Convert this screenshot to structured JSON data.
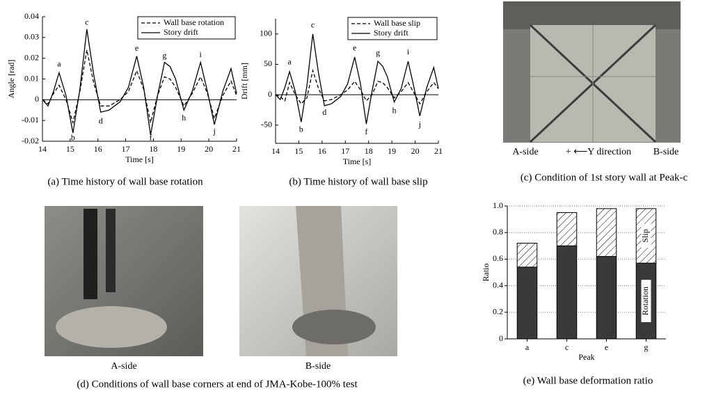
{
  "chart_data": [
    {
      "type": "line",
      "caption": "(a) Time history of wall base rotation",
      "xlabel": "Time [s]",
      "ylabel": "Angle [rad]",
      "x": [
        14,
        14.2,
        14.4,
        14.6,
        14.85,
        15.1,
        15.35,
        15.6,
        15.85,
        16.1,
        16.4,
        16.8,
        17.1,
        17.4,
        17.65,
        17.9,
        18.15,
        18.4,
        18.6,
        18.8,
        19.1,
        19.4,
        19.7,
        19.95,
        20.2,
        20.5,
        20.8,
        21
      ],
      "series": [
        {
          "name": "Wall base rotation",
          "color": "#000000",
          "style": "dashed",
          "values": [
            0,
            -0.002,
            0.003,
            0.007,
            0,
            -0.011,
            0.004,
            0.024,
            0.008,
            -0.003,
            -0.003,
            0,
            0.004,
            0.014,
            0.005,
            -0.011,
            0.002,
            0.011,
            0.01,
            0.006,
            -0.003,
            0.003,
            0.011,
            0.003,
            -0.009,
            0.002,
            0.009,
            0.002
          ]
        },
        {
          "name": "Story drift",
          "color": "#000000",
          "style": "solid",
          "values": [
            0,
            -0.003,
            0.004,
            0.013,
            0.002,
            -0.016,
            0.005,
            0.034,
            0.012,
            -0.006,
            -0.005,
            -0.001,
            0.006,
            0.021,
            0.006,
            -0.017,
            0.002,
            0.018,
            0.016,
            0.01,
            -0.005,
            0.004,
            0.018,
            0.004,
            -0.012,
            0.004,
            0.015,
            0.003
          ]
        }
      ],
      "annotations": [
        {
          "text": "a",
          "x": 14.6,
          "y": 0.017
        },
        {
          "text": "b",
          "x": 15.1,
          "y": -0.0185
        },
        {
          "text": "c",
          "x": 15.6,
          "y": 0.037
        },
        {
          "text": "d",
          "x": 16.1,
          "y": -0.0105
        },
        {
          "text": "e",
          "x": 17.4,
          "y": 0.0245
        },
        {
          "text": "f",
          "x": 17.9,
          "y": -0.0185
        },
        {
          "text": "g",
          "x": 18.4,
          "y": 0.021
        },
        {
          "text": "h",
          "x": 19.1,
          "y": -0.009
        },
        {
          "text": "i",
          "x": 19.7,
          "y": 0.0215
        },
        {
          "text": "j",
          "x": 20.2,
          "y": -0.0155
        }
      ],
      "xlim": [
        14,
        21
      ],
      "xticks": [
        14,
        15,
        16,
        17,
        18,
        19,
        20,
        21
      ],
      "ylim": [
        -0.02,
        0.04
      ],
      "yticks": [
        -0.02,
        -0.01,
        0,
        0.01,
        0.02,
        0.03,
        0.04
      ],
      "legend": "upper right",
      "grid": false
    },
    {
      "type": "line",
      "caption": "(b) Time history of wall base slip",
      "xlabel": "Time [s]",
      "ylabel": "Drift [mm]",
      "x": [
        14,
        14.2,
        14.4,
        14.6,
        14.85,
        15.1,
        15.35,
        15.6,
        15.85,
        16.1,
        16.4,
        16.8,
        17.1,
        17.4,
        17.65,
        17.9,
        18.15,
        18.4,
        18.6,
        18.8,
        19.1,
        19.4,
        19.7,
        19.95,
        20.2,
        20.5,
        20.8,
        21
      ],
      "series": [
        {
          "name": "Wall base slip",
          "color": "#000000",
          "style": "dashed",
          "values": [
            0,
            -3,
            -10,
            20,
            0,
            -15,
            -5,
            40,
            10,
            -10,
            -8,
            0,
            8,
            22,
            8,
            -10,
            0,
            22,
            20,
            12,
            -5,
            5,
            20,
            3,
            -15,
            5,
            20,
            10
          ]
        },
        {
          "name": "Story drift",
          "color": "#000000",
          "style": "solid",
          "values": [
            0,
            -8,
            12,
            38,
            5,
            -45,
            15,
            100,
            35,
            -18,
            -15,
            -3,
            18,
            62,
            18,
            -48,
            6,
            55,
            47,
            30,
            -12,
            10,
            55,
            12,
            -35,
            12,
            45,
            10
          ]
        }
      ],
      "annotations": [
        {
          "text": "a",
          "x": 14.6,
          "y": 53
        },
        {
          "text": "b",
          "x": 15.1,
          "y": -58
        },
        {
          "text": "c",
          "x": 15.6,
          "y": 114
        },
        {
          "text": "d",
          "x": 16.1,
          "y": -30
        },
        {
          "text": "e",
          "x": 17.4,
          "y": 76
        },
        {
          "text": "f",
          "x": 17.9,
          "y": -62
        },
        {
          "text": "g",
          "x": 18.4,
          "y": 68
        },
        {
          "text": "h",
          "x": 19.1,
          "y": -27
        },
        {
          "text": "i",
          "x": 19.7,
          "y": 70
        },
        {
          "text": "j",
          "x": 20.2,
          "y": -50
        }
      ],
      "xlim": [
        14,
        21
      ],
      "xticks": [
        14,
        15,
        16,
        17,
        18,
        19,
        20,
        21
      ],
      "ylim": [
        -80,
        125
      ],
      "yticks": [
        -50,
        0,
        50,
        100
      ],
      "legend": "upper right",
      "grid": false
    },
    {
      "type": "stacked-bar",
      "caption": "(e)    Wall base deformation ratio",
      "xlabel": "Peak",
      "ylabel": "Ratio",
      "categories": [
        "a",
        "c",
        "e",
        "g"
      ],
      "series": [
        {
          "name": "Rotation",
          "color": "#3a3a3a",
          "values": [
            0.54,
            0.7,
            0.62,
            0.57
          ]
        },
        {
          "name": "Slip",
          "color": "#ffffff",
          "hatch": "//",
          "values": [
            0.18,
            0.25,
            0.36,
            0.41
          ]
        }
      ],
      "ylim": [
        0,
        1
      ],
      "yticks": [
        0,
        0.2,
        0.4,
        0.6,
        0.8,
        {
          "value": 1,
          "label": "1.0"
        }
      ],
      "grid": true
    }
  ],
  "photos": {
    "c": {
      "caption": "(c) Condition of 1st story wall at Peak-c",
      "labels": [
        "A-side",
        "+ ⟵Y direction",
        "B-side"
      ]
    },
    "d": {
      "caption": "(d) Conditions of wall base corners at end of JMA-Kobe-100% test",
      "labels": [
        "A-side",
        "B-side"
      ]
    }
  }
}
